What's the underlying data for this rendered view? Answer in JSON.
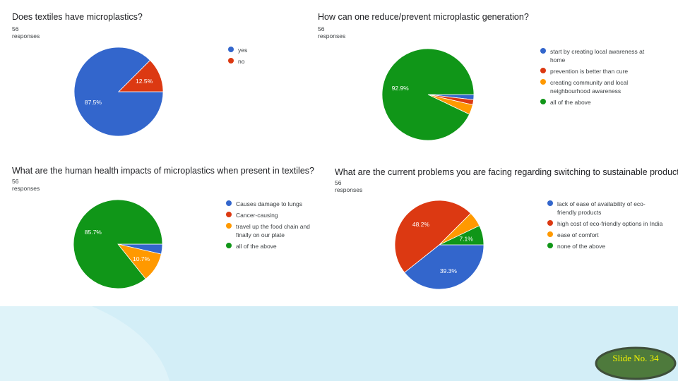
{
  "chart_data": [
    {
      "type": "pie",
      "title": "Does textiles have microplastics?",
      "subtitle": "56 responses",
      "categories": [
        "yes",
        "no"
      ],
      "values": [
        87.5,
        12.5
      ],
      "labels": [
        "87.5%",
        "12.5%"
      ],
      "colors": [
        "#3366cc",
        "#dc3912"
      ],
      "legend": "right"
    },
    {
      "type": "pie",
      "title": "How can one reduce/prevent microplastic generation?",
      "subtitle": "56 responses",
      "categories": [
        "start by creating local awareness at home",
        "prevention is better than cure",
        "creating community and local neighbourhood awareness",
        "all of the above"
      ],
      "values": [
        1.8,
        1.8,
        3.5,
        92.9
      ],
      "labels": [
        "",
        "",
        "",
        "92.9%"
      ],
      "colors": [
        "#3366cc",
        "#dc3912",
        "#ff9900",
        "#109618"
      ],
      "legend": "right"
    },
    {
      "type": "pie",
      "title": "What are the  human health impacts of microplastics when present in textiles?",
      "subtitle": "56 responses",
      "categories": [
        "Causes damage to lungs",
        "Cancer-causing",
        "travel up the food chain and finally on our plate",
        "all of the above"
      ],
      "values": [
        3.6,
        0,
        10.7,
        85.7
      ],
      "labels": [
        "",
        "",
        "10.7%",
        "85.7%"
      ],
      "colors": [
        "#3366cc",
        "#dc3912",
        "#ff9900",
        "#109618"
      ],
      "legend": "right"
    },
    {
      "type": "pie",
      "title": "What are the current problems you are facing regarding switching to sustainable products",
      "subtitle": "56 responses",
      "categories": [
        "lack of ease of availability of eco-friendly products",
        "high cost of eco-friendly options in India",
        "ease of comfort",
        "none of the above"
      ],
      "values": [
        39.3,
        48.2,
        5.4,
        7.1
      ],
      "labels": [
        "39.3%",
        "48.2%",
        "",
        "7.1%"
      ],
      "colors": [
        "#3366cc",
        "#dc3912",
        "#ff9900",
        "#109618"
      ],
      "legend": "right"
    }
  ],
  "footer": {
    "slide_number": "Slide No. 34",
    "badge_color": "#4e7a3c",
    "text_color": "#f5f500"
  },
  "background": {
    "band_color": "#dff3f9"
  }
}
